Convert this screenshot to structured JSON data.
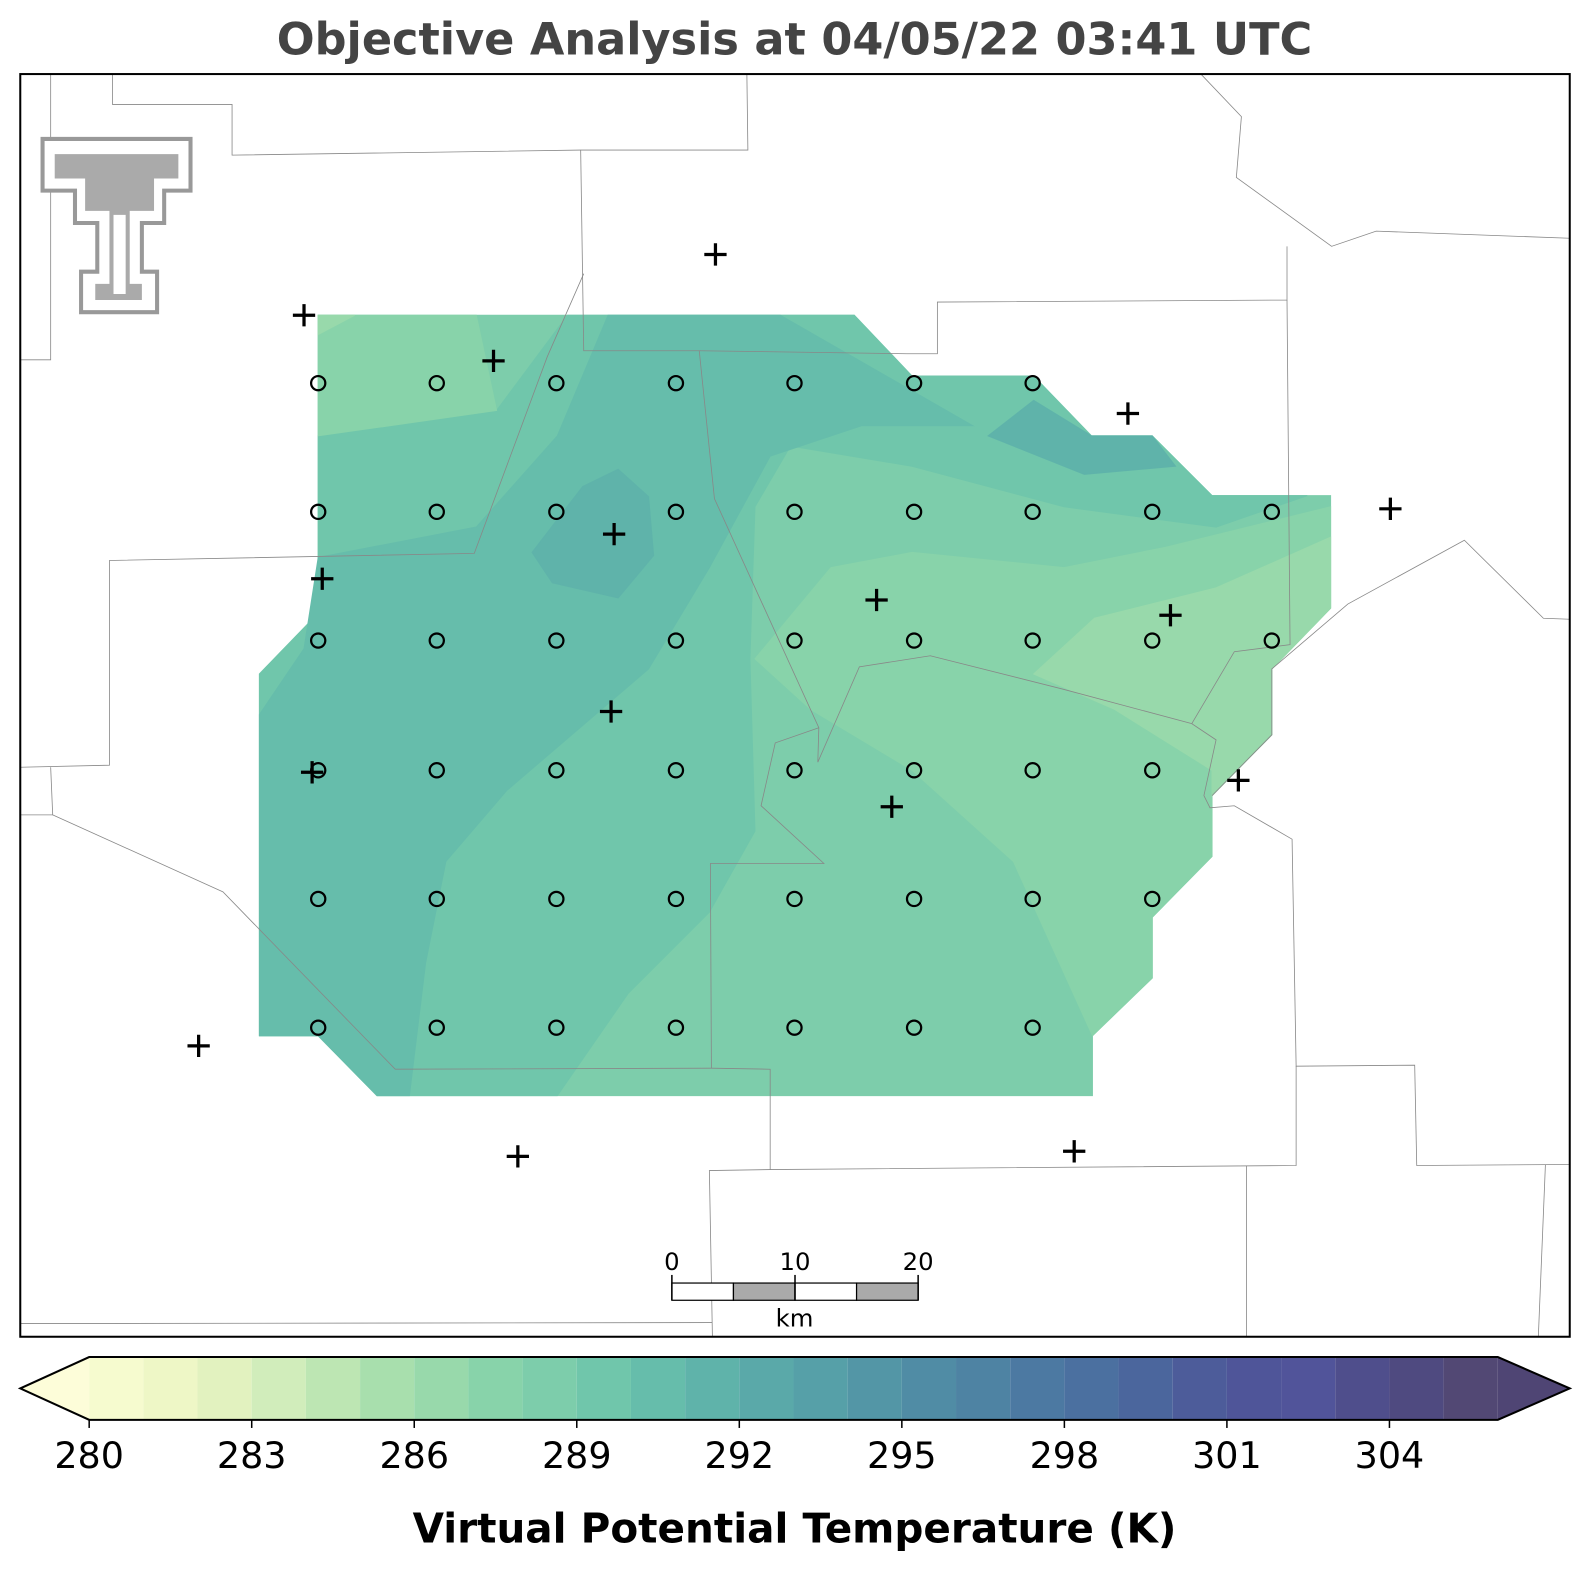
{
  "chart_data": {
    "type": "contourf",
    "title": "Objective Analysis at 04/05/22 03:41 UTC",
    "colorbar_label": "Virtual Potential Temperature (K)",
    "levels": [
      280,
      281,
      282,
      283,
      284,
      285,
      286,
      287,
      288,
      289,
      290,
      291,
      292,
      293,
      294,
      295,
      296,
      297,
      298,
      299,
      300,
      301,
      302,
      303,
      304,
      305,
      306
    ],
    "colors": [
      "#f6fbcf",
      "#eef7c6",
      "#e2f2bf",
      "#d1edbb",
      "#bde6b3",
      "#a8dfad",
      "#98d9ab",
      "#88d3aa",
      "#7dcdab",
      "#70c6ab",
      "#66bdab",
      "#5fb3aa",
      "#5aa9a9",
      "#56a0a8",
      "#5396a6",
      "#508ca5",
      "#4e83a3",
      "#4c79a2",
      "#4b70a0",
      "#4b669d",
      "#4d5c9a",
      "#4f5599",
      "#51549a",
      "#4f4e8c",
      "#4f4a80",
      "#524874"
    ],
    "under_color": "#fdfdd9",
    "over_color": "#4f4574",
    "ticks": [
      280,
      283,
      286,
      289,
      292,
      295,
      298,
      301,
      304
    ],
    "scale_bar": {
      "ticks": [
        0,
        10,
        20
      ],
      "unit": "km"
    }
  }
}
